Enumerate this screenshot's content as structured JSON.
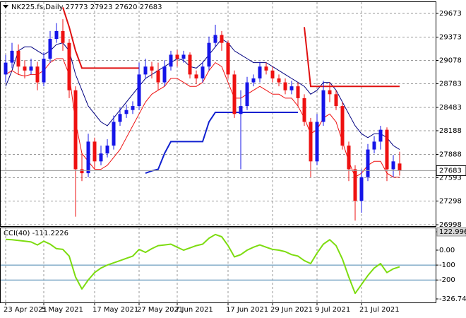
{
  "chart_data": [
    {
      "type": "candlestick",
      "title": "NK225.fs,Daily",
      "categories": [
        "23 Apr 2021",
        null,
        null,
        null,
        null,
        null,
        "5 May 2021",
        null,
        null,
        null,
        null,
        null,
        null,
        null,
        "17 May 2021",
        null,
        null,
        null,
        null,
        null,
        null,
        "27 May 2021",
        null,
        null,
        null,
        null,
        null,
        "7 Jun 2021",
        null,
        null,
        null,
        null,
        null,
        null,
        null,
        "17 Jun 2021",
        null,
        null,
        null,
        null,
        null,
        null,
        "29 Jun 2021",
        null,
        null,
        null,
        null,
        null,
        null,
        "9 Jul 2021",
        null,
        null,
        null,
        null,
        null,
        null,
        "21 Jul 2021",
        null,
        null,
        null,
        null,
        null,
        null
      ],
      "open": [
        28900,
        29050,
        29200,
        29000,
        28950,
        29000,
        28800,
        29100,
        29350,
        29450,
        29300,
        28700,
        27700,
        27650,
        28050,
        27800,
        27900,
        28000,
        28300,
        28400,
        28450,
        28500,
        28900,
        29000,
        28950,
        28800,
        29000,
        29150,
        29100,
        29150,
        28900,
        28850,
        29000,
        29300,
        29400,
        29300,
        28900,
        28400,
        28500,
        28800,
        28850,
        29000,
        28950,
        28850,
        28800,
        28700,
        28750,
        28600,
        28300,
        27800,
        28300,
        28700,
        28650,
        28500,
        28000,
        27700,
        27300,
        27600,
        27950,
        28050,
        28200,
        27700,
        27773
      ],
      "high": [
        29150,
        29300,
        29280,
        29080,
        29100,
        29060,
        29180,
        29450,
        29550,
        29600,
        29350,
        28750,
        27900,
        28150,
        28100,
        28000,
        28080,
        28380,
        28480,
        28520,
        28560,
        29050,
        29100,
        29060,
        29050,
        29080,
        29200,
        29210,
        29200,
        29180,
        28950,
        29060,
        29380,
        29530,
        29450,
        29330,
        28950,
        28700,
        28870,
        28900,
        29060,
        29050,
        29000,
        28900,
        28850,
        28820,
        28800,
        28650,
        28350,
        28400,
        28820,
        28800,
        28700,
        28550,
        28050,
        27750,
        27700,
        28020,
        28120,
        28250,
        28230,
        27880,
        27923
      ],
      "low": [
        28800,
        28980,
        28900,
        28850,
        28900,
        28700,
        28750,
        29050,
        29300,
        29200,
        28600,
        27100,
        27550,
        27600,
        27700,
        27750,
        27850,
        27950,
        28250,
        28350,
        28400,
        28450,
        28850,
        28850,
        28700,
        28750,
        28950,
        29000,
        29050,
        28850,
        28780,
        28800,
        28950,
        29250,
        29200,
        28850,
        28350,
        27700,
        28450,
        28750,
        28800,
        28900,
        28800,
        28750,
        28650,
        28650,
        28500,
        28250,
        27600,
        27750,
        28250,
        28550,
        28450,
        27950,
        27550,
        27050,
        27150,
        27550,
        27900,
        27950,
        27550,
        27600,
        27620
      ],
      "close": [
        29050,
        29200,
        29000,
        28950,
        29000,
        28800,
        29100,
        29350,
        29450,
        29300,
        28700,
        27700,
        27650,
        28050,
        27800,
        27900,
        28000,
        28300,
        28400,
        28450,
        28500,
        28900,
        29000,
        28950,
        28800,
        29000,
        29150,
        29100,
        29150,
        28900,
        28850,
        29000,
        29300,
        29400,
        29300,
        28900,
        28400,
        28500,
        28800,
        28850,
        29000,
        28950,
        28850,
        28800,
        28700,
        28750,
        28600,
        28300,
        27800,
        28300,
        28700,
        28650,
        28500,
        28000,
        27700,
        27300,
        27600,
        27950,
        28050,
        28200,
        27700,
        27800,
        27683
      ],
      "up_color": "#1515e8",
      "down_color": "#ee1111",
      "ylim": [
        26980,
        29816
      ],
      "yticks": [
        29673,
        29373,
        29078,
        28783,
        28483,
        28188,
        27888,
        27593,
        27298,
        26998
      ],
      "grid": true,
      "overlays": [
        {
          "color": "#000080",
          "width": 1,
          "values": [
            28750,
            28950,
            29200,
            29250,
            29250,
            29200,
            29150,
            29200,
            29280,
            29300,
            29200,
            28900,
            28700,
            28500,
            28400,
            28300,
            28250,
            28350,
            28450,
            28550,
            28650,
            28750,
            28850,
            28900,
            28950,
            29000,
            29050,
            29100,
            29080,
            29000,
            28980,
            29050,
            29150,
            29250,
            29350,
            29300,
            29200,
            29150,
            29100,
            29050,
            29050,
            29050,
            29000,
            28950,
            28900,
            28850,
            28800,
            28750,
            28650,
            28700,
            28800,
            28800,
            28700,
            28550,
            28400,
            28250,
            28150,
            28100,
            28150,
            28150,
            28100,
            28000,
            27950
          ]
        },
        {
          "color": "#ee1111",
          "width": 1,
          "values": [
            28900,
            28950,
            28900,
            28880,
            28900,
            28900,
            28950,
            29050,
            29100,
            29100,
            28900,
            28300,
            27900,
            27800,
            27700,
            27700,
            27750,
            27850,
            27950,
            28100,
            28250,
            28400,
            28550,
            28650,
            28700,
            28750,
            28850,
            28850,
            28800,
            28750,
            28750,
            28800,
            28950,
            29050,
            29000,
            28800,
            28600,
            28600,
            28650,
            28700,
            28750,
            28700,
            28650,
            28650,
            28600,
            28600,
            28500,
            28350,
            28150,
            28200,
            28350,
            28400,
            28300,
            28050,
            27800,
            27600,
            27650,
            27750,
            27800,
            27800,
            27650,
            27600,
            27600
          ]
        },
        {
          "color": "#e01010",
          "width": 2,
          "values": [
            null,
            null,
            null,
            null,
            null,
            null,
            null,
            null,
            null,
            29750,
            29500,
            29200,
            28980,
            28980,
            28980,
            28980,
            28980,
            28980,
            28980,
            28980,
            28980,
            28980,
            null,
            null,
            null,
            null,
            null,
            null,
            null,
            null,
            null,
            null,
            null,
            null,
            null,
            null,
            null,
            null,
            null,
            null,
            null,
            null,
            null,
            null,
            null,
            null,
            null,
            29500,
            28750,
            28750,
            28750,
            28750,
            28750,
            28750,
            28750,
            28750,
            28750,
            28750,
            28750,
            28750,
            28750,
            28750,
            28750
          ]
        },
        {
          "color": "#1020d0",
          "width": 2,
          "values": [
            null,
            null,
            null,
            null,
            null,
            null,
            null,
            null,
            null,
            null,
            null,
            null,
            null,
            null,
            null,
            null,
            null,
            null,
            null,
            null,
            null,
            null,
            27650,
            27680,
            27700,
            27900,
            28050,
            28050,
            28050,
            28050,
            28050,
            28050,
            28300,
            28420,
            28420,
            28420,
            28420,
            28420,
            28420,
            28420,
            28420,
            28420,
            28420,
            28420,
            28420,
            28420,
            28420,
            null,
            null,
            null,
            null,
            null,
            null,
            null,
            null,
            null,
            null,
            null,
            null,
            null,
            null,
            null,
            null
          ]
        }
      ]
    },
    {
      "type": "line",
      "title": "CCI(40)",
      "current_value": -111.2226,
      "color": "#7ddc10",
      "values": [
        72,
        70,
        65,
        60,
        55,
        35,
        60,
        40,
        10,
        5,
        -40,
        -180,
        -260,
        -200,
        -150,
        -120,
        -100,
        -85,
        -70,
        -55,
        -40,
        5,
        -15,
        10,
        30,
        35,
        40,
        20,
        0,
        15,
        30,
        40,
        80,
        105,
        90,
        30,
        -45,
        -30,
        0,
        20,
        35,
        20,
        5,
        0,
        -10,
        -30,
        -40,
        -70,
        -90,
        -20,
        40,
        70,
        30,
        -60,
        -180,
        -290,
        -230,
        -170,
        -120,
        -90,
        -150,
        -125,
        -111.2226
      ],
      "ylim": [
        -326.744,
        122.9967
      ],
      "yticks": [
        122.9967,
        {
          "value": 0,
          "label": "0.00"
        },
        -100,
        -200,
        -326.744
      ],
      "levels": [
        -100,
        -200
      ],
      "level_color": "#4a86b0"
    }
  ]
}
